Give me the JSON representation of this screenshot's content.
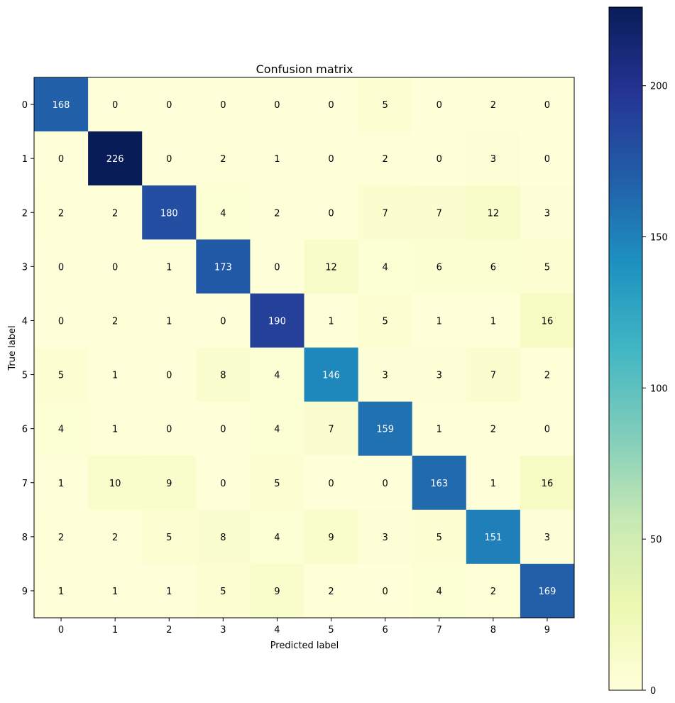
{
  "chart_data": {
    "type": "heatmap",
    "title": "Confusion matrix",
    "xlabel": "Predicted label",
    "ylabel": "True label",
    "x_categories": [
      "0",
      "1",
      "2",
      "3",
      "4",
      "5",
      "6",
      "7",
      "8",
      "9"
    ],
    "y_categories": [
      "0",
      "1",
      "2",
      "3",
      "4",
      "5",
      "6",
      "7",
      "8",
      "9"
    ],
    "matrix": [
      [
        168,
        0,
        0,
        0,
        0,
        0,
        5,
        0,
        2,
        0
      ],
      [
        0,
        226,
        0,
        2,
        1,
        0,
        2,
        0,
        3,
        0
      ],
      [
        2,
        2,
        180,
        4,
        2,
        0,
        7,
        7,
        12,
        3
      ],
      [
        0,
        0,
        1,
        173,
        0,
        12,
        4,
        6,
        6,
        5
      ],
      [
        0,
        2,
        1,
        0,
        190,
        1,
        5,
        1,
        1,
        16
      ],
      [
        5,
        1,
        0,
        8,
        4,
        146,
        3,
        3,
        7,
        2
      ],
      [
        4,
        1,
        0,
        0,
        4,
        7,
        159,
        1,
        2,
        0
      ],
      [
        1,
        10,
        9,
        0,
        5,
        0,
        0,
        163,
        1,
        16
      ],
      [
        2,
        2,
        5,
        8,
        4,
        9,
        3,
        5,
        151,
        3
      ],
      [
        1,
        1,
        1,
        5,
        9,
        2,
        0,
        4,
        2,
        169
      ]
    ],
    "colorbar": {
      "range": [
        0,
        226
      ],
      "ticks": [
        0,
        50,
        100,
        150,
        200
      ],
      "tick_labels": [
        "0",
        "50",
        "100",
        "150",
        "200"
      ],
      "colormap": "YlGnBu",
      "colormap_stops": [
        "#ffffd9",
        "#edf8b1",
        "#c7e9b4",
        "#7fcdbb",
        "#41b6c4",
        "#1d91c0",
        "#225ea8",
        "#253494",
        "#081d58"
      ]
    },
    "grid": false,
    "legend": "colorbar-right",
    "text_color_dark": "#000000",
    "text_color_light": "#ffffff"
  }
}
